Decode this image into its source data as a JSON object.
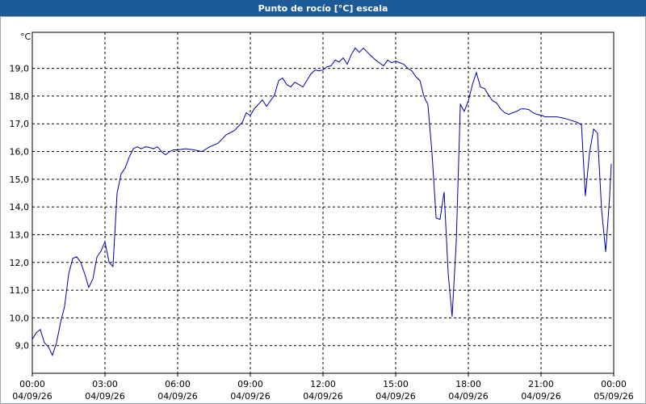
{
  "chart_data": {
    "type": "line",
    "title": "Punto de rocío [°C] escala",
    "y_label": "°C",
    "xlim": [
      0,
      24
    ],
    "xticks": [
      {
        "value": 0,
        "label": "00:00"
      },
      {
        "value": 3,
        "label": "03:00"
      },
      {
        "value": 6,
        "label": "06:00"
      },
      {
        "value": 9,
        "label": "09:00"
      },
      {
        "value": 12,
        "label": "12:00"
      },
      {
        "value": 15,
        "label": "15:00"
      },
      {
        "value": 18,
        "label": "18:00"
      },
      {
        "value": 21,
        "label": "21:00"
      },
      {
        "value": 24,
        "label": "00:00"
      }
    ],
    "xtick_dates": [
      "04/09/26",
      "04/09/26",
      "04/09/26",
      "04/09/26",
      "04/09/26",
      "04/09/26",
      "04/09/26",
      "04/09/26",
      "05/09/26"
    ],
    "ylim": [
      8.0,
      20.3
    ],
    "yticks": [
      {
        "value": 9,
        "label": "9,0"
      },
      {
        "value": 10,
        "label": "10,0"
      },
      {
        "value": 11,
        "label": "11,0"
      },
      {
        "value": 12,
        "label": "12,0"
      },
      {
        "value": 13,
        "label": "13,0"
      },
      {
        "value": 14,
        "label": "14,0"
      },
      {
        "value": 15,
        "label": "15,0"
      },
      {
        "value": 16,
        "label": "16,0"
      },
      {
        "value": 17,
        "label": "17,0"
      },
      {
        "value": 18,
        "label": "18,0"
      },
      {
        "value": 19,
        "label": "19,0"
      }
    ],
    "grid": true,
    "color": "#0000a8",
    "x": [
      0,
      0.17,
      0.33,
      0.5,
      0.67,
      0.83,
      1,
      1.17,
      1.33,
      1.5,
      1.67,
      1.83,
      2,
      2.17,
      2.33,
      2.5,
      2.67,
      2.83,
      3,
      3.17,
      3.33,
      3.5,
      3.67,
      3.83,
      4,
      4.17,
      4.33,
      4.5,
      4.67,
      4.83,
      5,
      5.17,
      5.33,
      5.5,
      5.67,
      5.83,
      6,
      6.33,
      6.67,
      7,
      7.33,
      7.67,
      8,
      8.33,
      8.67,
      8.83,
      9,
      9.17,
      9.33,
      9.5,
      9.67,
      9.83,
      10,
      10.17,
      10.33,
      10.5,
      10.67,
      10.83,
      11,
      11.17,
      11.33,
      11.5,
      11.67,
      11.83,
      12,
      12.17,
      12.33,
      12.5,
      12.67,
      12.83,
      13,
      13.17,
      13.33,
      13.5,
      13.67,
      13.83,
      14,
      14.17,
      14.33,
      14.5,
      14.67,
      14.83,
      15,
      15.17,
      15.33,
      15.5,
      15.67,
      15.83,
      16,
      16.17,
      16.33,
      16.5,
      16.67,
      16.83,
      17,
      17.17,
      17.33,
      17.5,
      17.67,
      17.83,
      18,
      18.17,
      18.33,
      18.5,
      18.67,
      18.83,
      19,
      19.17,
      19.33,
      19.5,
      19.67,
      19.83,
      20,
      20.17,
      20.33,
      20.5,
      20.67,
      20.83,
      21,
      21.17,
      21.33,
      21.67,
      22,
      22.33,
      22.5,
      22.67,
      22.83,
      23,
      23.17,
      23.33,
      23.5,
      23.67,
      23.83,
      23.9
    ],
    "values": [
      9.23,
      9.47,
      9.58,
      9.1,
      8.95,
      8.65,
      9.1,
      9.85,
      10.4,
      11.57,
      12.15,
      12.2,
      12.0,
      11.57,
      11.1,
      11.4,
      12.2,
      12.4,
      12.75,
      12.0,
      11.85,
      14.5,
      15.2,
      15.4,
      15.8,
      16.1,
      16.17,
      16.1,
      16.17,
      16.15,
      16.1,
      16.17,
      16.0,
      15.88,
      16.0,
      16.06,
      16.06,
      16.1,
      16.06,
      16.0,
      16.17,
      16.3,
      16.6,
      16.75,
      17.05,
      17.4,
      17.3,
      17.55,
      17.7,
      17.86,
      17.63,
      17.83,
      18.04,
      18.56,
      18.65,
      18.42,
      18.33,
      18.5,
      18.42,
      18.33,
      18.56,
      18.8,
      18.94,
      18.91,
      18.94,
      19.06,
      19.09,
      19.3,
      19.23,
      19.38,
      19.15,
      19.5,
      19.73,
      19.58,
      19.73,
      19.58,
      19.44,
      19.3,
      19.2,
      19.09,
      19.3,
      19.2,
      19.26,
      19.2,
      19.15,
      19.0,
      18.91,
      18.7,
      18.56,
      17.98,
      17.7,
      15.94,
      13.6,
      13.55,
      14.54,
      11.57,
      10.05,
      12.73,
      17.7,
      17.45,
      17.83,
      18.42,
      18.85,
      18.33,
      18.27,
      18.04,
      17.83,
      17.75,
      17.54,
      17.4,
      17.34,
      17.4,
      17.45,
      17.54,
      17.54,
      17.51,
      17.4,
      17.34,
      17.31,
      17.25,
      17.25,
      17.25,
      17.19,
      17.1,
      17.05,
      16.96,
      14.39,
      15.94,
      16.81,
      16.67,
      13.9,
      12.38,
      14.34,
      15.56
    ]
  }
}
